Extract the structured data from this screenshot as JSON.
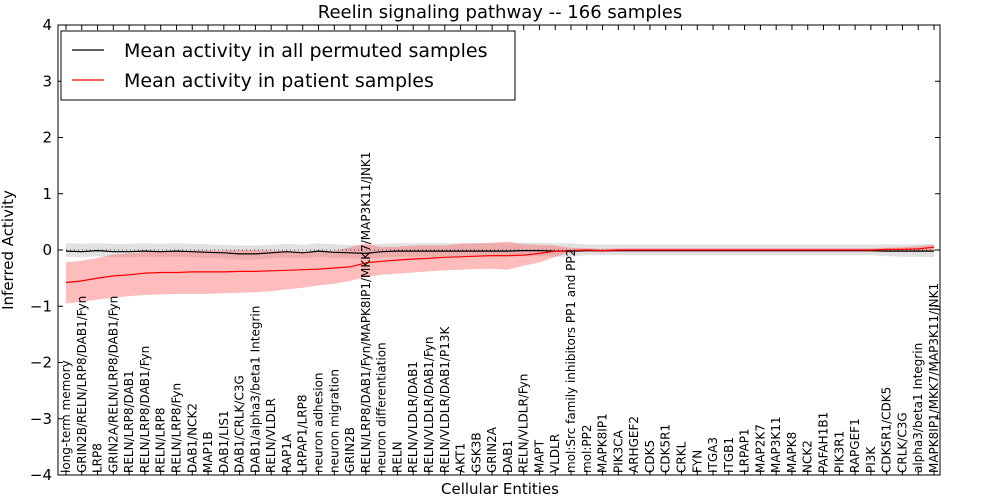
{
  "chart_data": {
    "type": "line",
    "title": "Reelin signaling pathway -- 166 samples",
    "xlabel": "Cellular Entities",
    "ylabel": "Inferred Activity",
    "ylim": [
      -4,
      4
    ],
    "yticks": [
      -4,
      -3,
      -2,
      -1,
      0,
      1,
      2,
      3,
      4
    ],
    "ytick_labels": [
      "−4",
      "−3",
      "−2",
      "−1",
      "0",
      "1",
      "2",
      "3",
      "4"
    ],
    "legend": {
      "placement": "top-left",
      "entries": [
        {
          "label": "Mean activity in all permuted samples",
          "color": "#000000"
        },
        {
          "label": "Mean activity in patient samples",
          "color": "#ff0000"
        }
      ]
    },
    "categories": [
      "long-term memory",
      "GRIN2B/RELN/LRP8/DAB1/Fyn",
      "LRP8",
      "GRIN2A/RELN/LRP8/DAB1/Fyn",
      "RELN/LRP8/DAB1",
      "RELN/LRP8/DAB1/Fyn",
      "RELN/LRP8",
      "RELN/LRP8/Fyn",
      "DAB1/NCK2",
      "MAP1B",
      "DAB1/LIS1",
      "DAB1/CRLK/C3G",
      "DAB1/alpha3/beta1 Integrin",
      "RELN/VLDLR",
      "RAP1A",
      "LRPAP1/LRP8",
      "neuron adhesion",
      "neuron migration",
      "GRIN2B",
      "RELN/LRP8/DAB1/Fyn/MAPK8IP1/MKK7/MAP3K11/JNK1",
      "neuron differentiation",
      "RELN",
      "RELN/VLDLR/DAB1",
      "RELN/VLDLR/DAB1/Fyn",
      "RELN/VLDLR/DAB1/P13K",
      "AKT1",
      "GSK3B",
      "GRIN2A",
      "DAB1",
      "RELN/VLDLR/Fyn",
      "MAPT",
      "VLDLR",
      "mol:Src family inhibitors PP1 and PP2",
      "mol:PP2",
      "MAPK8IP1",
      "PIK3CA",
      "ARHGEF2",
      "CDK5",
      "CDK5R1",
      "CRKL",
      "FYN",
      "ITGA3",
      "ITGB1",
      "LRPAP1",
      "MAP2K7",
      "MAP3K11",
      "MAPK8",
      "NCK2",
      "PAFAH1B1",
      "PIK3R1",
      "RAPGEF1",
      "PI3K",
      "CDK5R1/CDK5",
      "CRLK/C3G",
      "alpha3/beta1 Integrin",
      "MAPK8IP1/MKK7/MAP3K11/JNK1"
    ],
    "series": [
      {
        "name": "Mean activity in all permuted samples",
        "color": "#000000",
        "values": [
          -0.02,
          -0.03,
          -0.01,
          -0.03,
          -0.03,
          -0.02,
          -0.03,
          -0.02,
          -0.03,
          -0.04,
          -0.05,
          -0.07,
          -0.07,
          -0.05,
          -0.03,
          -0.05,
          -0.02,
          -0.04,
          -0.05,
          -0.06,
          -0.03,
          -0.02,
          -0.02,
          -0.02,
          -0.02,
          -0.02,
          -0.02,
          -0.02,
          -0.02,
          -0.01,
          -0.01,
          -0.02,
          -0.02,
          -0.01,
          -0.01,
          -0.01,
          -0.01,
          -0.01,
          -0.01,
          -0.01,
          -0.01,
          -0.01,
          -0.01,
          -0.01,
          -0.01,
          -0.01,
          -0.01,
          -0.01,
          -0.01,
          -0.01,
          -0.01,
          -0.01,
          -0.02,
          -0.02,
          -0.02,
          -0.02
        ],
        "band_lower": [
          -0.12,
          -0.13,
          -0.11,
          -0.13,
          -0.13,
          -0.12,
          -0.13,
          -0.12,
          -0.13,
          -0.14,
          -0.15,
          -0.17,
          -0.17,
          -0.15,
          -0.13,
          -0.15,
          -0.12,
          -0.14,
          -0.15,
          -0.16,
          -0.13,
          -0.12,
          -0.12,
          -0.12,
          -0.12,
          -0.12,
          -0.12,
          -0.12,
          -0.12,
          -0.11,
          -0.11,
          -0.12,
          -0.12,
          -0.09,
          -0.09,
          -0.09,
          -0.09,
          -0.09,
          -0.09,
          -0.09,
          -0.09,
          -0.09,
          -0.09,
          -0.09,
          -0.09,
          -0.09,
          -0.09,
          -0.09,
          -0.09,
          -0.09,
          -0.09,
          -0.09,
          -0.11,
          -0.12,
          -0.12,
          -0.13
        ],
        "band_upper": [
          0.12,
          0.11,
          0.12,
          0.11,
          0.11,
          0.12,
          0.11,
          0.12,
          0.11,
          0.1,
          0.09,
          0.08,
          0.08,
          0.09,
          0.11,
          0.09,
          0.12,
          0.1,
          0.09,
          0.08,
          0.11,
          0.12,
          0.12,
          0.12,
          0.12,
          0.12,
          0.12,
          0.12,
          0.12,
          0.13,
          0.13,
          0.12,
          0.12,
          0.1,
          0.1,
          0.1,
          0.1,
          0.1,
          0.1,
          0.1,
          0.1,
          0.1,
          0.1,
          0.1,
          0.1,
          0.1,
          0.1,
          0.1,
          0.1,
          0.1,
          0.1,
          0.1,
          0.1,
          0.1,
          0.1,
          0.1
        ]
      },
      {
        "name": "Mean activity in patient samples",
        "color": "#ff0000",
        "values": [
          -0.58,
          -0.55,
          -0.5,
          -0.46,
          -0.44,
          -0.41,
          -0.4,
          -0.4,
          -0.39,
          -0.39,
          -0.39,
          -0.38,
          -0.38,
          -0.37,
          -0.36,
          -0.35,
          -0.34,
          -0.32,
          -0.3,
          -0.23,
          -0.2,
          -0.18,
          -0.16,
          -0.15,
          -0.13,
          -0.12,
          -0.11,
          -0.1,
          -0.1,
          -0.09,
          -0.06,
          -0.02,
          -0.01,
          0.0,
          -0.01,
          0.0,
          0.0,
          0.0,
          0.0,
          0.0,
          0.0,
          0.0,
          0.0,
          0.0,
          0.0,
          0.0,
          0.0,
          0.0,
          0.0,
          0.0,
          0.0,
          0.0,
          0.01,
          0.01,
          0.02,
          0.05
        ],
        "band_lower": [
          -0.95,
          -0.92,
          -0.88,
          -0.85,
          -0.82,
          -0.8,
          -0.79,
          -0.78,
          -0.78,
          -0.78,
          -0.77,
          -0.76,
          -0.75,
          -0.73,
          -0.7,
          -0.67,
          -0.63,
          -0.6,
          -0.55,
          -0.48,
          -0.44,
          -0.42,
          -0.4,
          -0.38,
          -0.36,
          -0.35,
          -0.34,
          -0.33,
          -0.35,
          -0.28,
          -0.22,
          -0.12,
          -0.04,
          -0.03,
          -0.04,
          -0.03,
          -0.03,
          -0.03,
          -0.03,
          -0.03,
          -0.03,
          -0.03,
          -0.03,
          -0.03,
          -0.03,
          -0.03,
          -0.03,
          -0.03,
          -0.03,
          -0.03,
          -0.03,
          -0.03,
          -0.03,
          -0.03,
          -0.02,
          -0.02
        ],
        "band_upper": [
          -0.22,
          -0.19,
          -0.14,
          -0.08,
          -0.06,
          -0.04,
          -0.03,
          -0.02,
          -0.01,
          -0.01,
          -0.01,
          0.0,
          0.0,
          -0.01,
          -0.02,
          -0.03,
          -0.04,
          -0.02,
          0.05,
          0.12,
          0.05,
          0.06,
          0.08,
          0.08,
          0.08,
          0.11,
          0.12,
          0.13,
          0.15,
          0.1,
          0.09,
          0.08,
          0.04,
          0.03,
          0.02,
          0.03,
          0.03,
          0.03,
          0.03,
          0.03,
          0.03,
          0.03,
          0.03,
          0.03,
          0.03,
          0.03,
          0.03,
          0.03,
          0.03,
          0.03,
          0.03,
          0.03,
          0.04,
          0.05,
          0.07,
          0.1
        ]
      }
    ],
    "colors": {
      "permuted_line": "#000000",
      "permuted_band": "#c8c8c8",
      "patient_line": "#ff0000",
      "patient_band": "#ff6b6b"
    }
  }
}
